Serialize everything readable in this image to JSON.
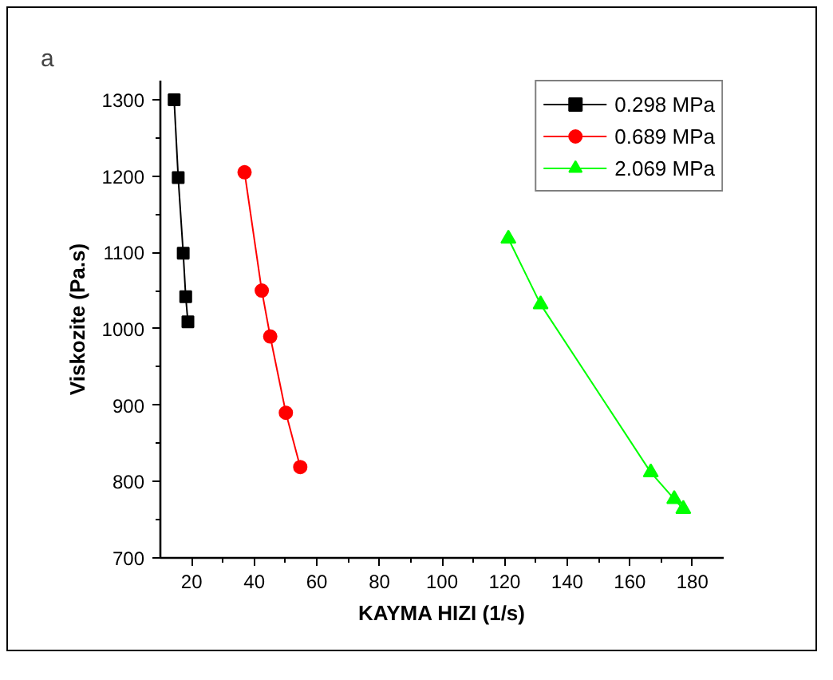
{
  "chart_data": {
    "type": "line",
    "xlabel": "KAYMA HIZI (1/s)",
    "ylabel": "Viskozite (Pa.s)",
    "annotations": [
      "a"
    ],
    "xlim": [
      10,
      190
    ],
    "xticks": [
      20,
      40,
      60,
      80,
      100,
      120,
      140,
      160,
      180
    ],
    "ylim": [
      700,
      1325
    ],
    "yticks": [
      700,
      800,
      900,
      1000,
      1100,
      1200,
      1300
    ],
    "grid": false,
    "legend": "top right",
    "series": [
      {
        "name": "0.298 MPa",
        "color": "#000000",
        "marker": "square",
        "x": [
          14.4,
          15.7,
          17.3,
          18.1,
          18.8
        ],
        "values": [
          1300,
          1198,
          1099,
          1042,
          1009
        ]
      },
      {
        "name": "0.689 MPa",
        "color": "#ff0000",
        "marker": "circle",
        "x": [
          36.9,
          42.4,
          45.1,
          50.1,
          54.7
        ],
        "values": [
          1205,
          1050,
          990,
          890,
          819
        ]
      },
      {
        "name": "2.069 MPa",
        "color": "#00ff00",
        "marker": "triangle",
        "x": [
          121.2,
          131.5,
          166.7,
          174.2,
          177.1
        ],
        "values": [
          1118,
          1032,
          812,
          777,
          764
        ]
      }
    ]
  }
}
